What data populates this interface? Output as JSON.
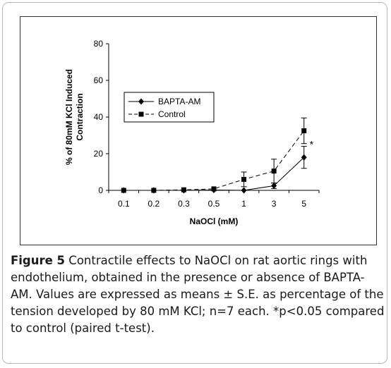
{
  "chart_data": {
    "type": "line",
    "categories": [
      "0.1",
      "0.2",
      "0.3",
      "0.5",
      "1",
      "3",
      "5"
    ],
    "xlabel": "NaOCl (mM)",
    "ylabel": "% of 80mM KCl Induced Contraction",
    "ylim": [
      0,
      80
    ],
    "yticks": [
      "0",
      "20",
      "40",
      "60",
      "80"
    ],
    "grid": false,
    "legend_position": "left",
    "series": [
      {
        "name": "BAPTA-AM",
        "marker": "diamond",
        "line_style": "solid",
        "values": [
          0,
          0,
          0,
          0.2,
          0,
          2.5,
          18
        ],
        "errors": [
          0,
          0,
          0,
          0,
          0,
          1.5,
          6
        ]
      },
      {
        "name": "Control",
        "marker": "square",
        "line_style": "dashed",
        "values": [
          0,
          0,
          0.3,
          0.8,
          6,
          10.5,
          32.5
        ],
        "errors": [
          0,
          0,
          0,
          0,
          4,
          6.5,
          7
        ]
      }
    ],
    "annotations": [
      {
        "text": "*",
        "category": "5",
        "series": "BAPTA-AM"
      }
    ]
  },
  "caption": {
    "label": "Figure 5",
    "text": " Contractile effects to NaOCl on rat aortic rings with endothelium, obtained in the presence or absence of BAPTA-AM. Values are expressed as means ± S.E. as percentage of the tension developed by 80 mM KCl; n=7 each. *p<0.05 compared to control (paired t-test)."
  }
}
